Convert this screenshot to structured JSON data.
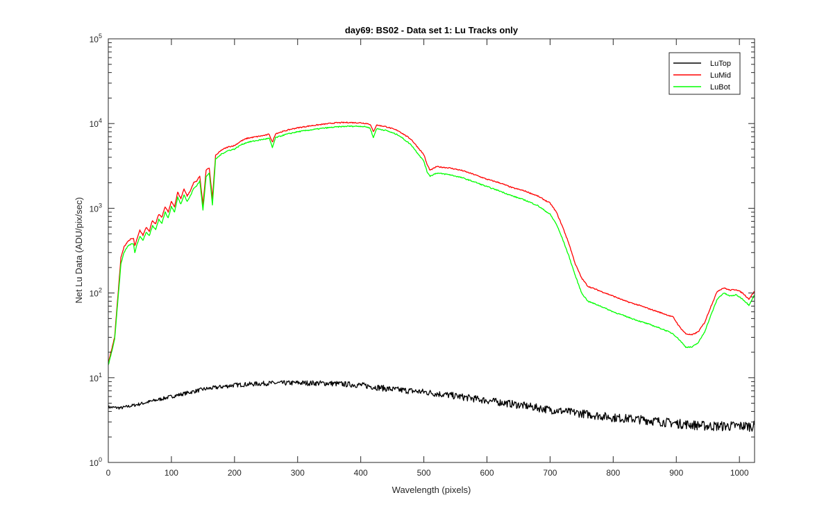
{
  "chart_data": {
    "type": "line",
    "title": "day69: BS02 - Data set 1: Lu Tracks only",
    "xlabel": "Wavelength (pixels)",
    "ylabel": "Net Lu Data (ADU/pix/sec)",
    "xlim": [
      0,
      1024
    ],
    "ylim": [
      1,
      100000
    ],
    "yscale": "log",
    "x_ticks": [
      0,
      100,
      200,
      300,
      400,
      500,
      600,
      700,
      800,
      900,
      1000
    ],
    "y_ticks": [
      {
        "value": 1,
        "base": "10",
        "exp": "0"
      },
      {
        "value": 10,
        "base": "10",
        "exp": "1"
      },
      {
        "value": 100,
        "base": "10",
        "exp": "2"
      },
      {
        "value": 1000,
        "base": "10",
        "exp": "3"
      },
      {
        "value": 10000,
        "base": "10",
        "exp": "4"
      },
      {
        "value": 100000,
        "base": "10",
        "exp": "5"
      }
    ],
    "grid": false,
    "legend_position": "top-right",
    "series": [
      {
        "name": "LuTop",
        "color": "#000000",
        "points": [
          [
            0,
            4.5
          ],
          [
            20,
            4.4
          ],
          [
            50,
            4.9
          ],
          [
            100,
            6.0
          ],
          [
            150,
            7.3
          ],
          [
            200,
            8.2
          ],
          [
            250,
            8.6
          ],
          [
            300,
            8.7
          ],
          [
            350,
            8.6
          ],
          [
            400,
            8.2
          ],
          [
            450,
            7.3
          ],
          [
            500,
            6.8
          ],
          [
            550,
            6.1
          ],
          [
            600,
            5.4
          ],
          [
            650,
            4.8
          ],
          [
            700,
            4.2
          ],
          [
            750,
            3.8
          ],
          [
            800,
            3.4
          ],
          [
            850,
            3.2
          ],
          [
            900,
            2.9
          ],
          [
            950,
            2.7
          ],
          [
            1000,
            2.7
          ],
          [
            1024,
            2.7
          ]
        ]
      },
      {
        "name": "LuMid",
        "color": "#ff0000",
        "points": [
          [
            0,
            15
          ],
          [
            10,
            30
          ],
          [
            20,
            260
          ],
          [
            25,
            350
          ],
          [
            30,
            400
          ],
          [
            35,
            430
          ],
          [
            40,
            440
          ],
          [
            42,
            360
          ],
          [
            45,
            420
          ],
          [
            50,
            550
          ],
          [
            55,
            480
          ],
          [
            60,
            600
          ],
          [
            65,
            540
          ],
          [
            70,
            720
          ],
          [
            75,
            650
          ],
          [
            80,
            850
          ],
          [
            85,
            780
          ],
          [
            90,
            1050
          ],
          [
            95,
            900
          ],
          [
            100,
            1200
          ],
          [
            105,
            1050
          ],
          [
            110,
            1550
          ],
          [
            115,
            1300
          ],
          [
            120,
            1700
          ],
          [
            125,
            1400
          ],
          [
            130,
            1600
          ],
          [
            135,
            2000
          ],
          [
            140,
            2100
          ],
          [
            145,
            2400
          ],
          [
            150,
            1100
          ],
          [
            155,
            2800
          ],
          [
            160,
            3000
          ],
          [
            165,
            1300
          ],
          [
            170,
            4200
          ],
          [
            180,
            4900
          ],
          [
            190,
            5300
          ],
          [
            200,
            5500
          ],
          [
            210,
            6200
          ],
          [
            220,
            6700
          ],
          [
            230,
            6900
          ],
          [
            240,
            7100
          ],
          [
            250,
            7300
          ],
          [
            255,
            7500
          ],
          [
            260,
            6000
          ],
          [
            265,
            7600
          ],
          [
            270,
            7800
          ],
          [
            280,
            8200
          ],
          [
            290,
            8600
          ],
          [
            300,
            8900
          ],
          [
            320,
            9400
          ],
          [
            340,
            9800
          ],
          [
            360,
            10200
          ],
          [
            380,
            10300
          ],
          [
            400,
            10200
          ],
          [
            410,
            10000
          ],
          [
            415,
            9800
          ],
          [
            420,
            8000
          ],
          [
            425,
            9600
          ],
          [
            440,
            9200
          ],
          [
            460,
            8200
          ],
          [
            480,
            6500
          ],
          [
            500,
            4300
          ],
          [
            505,
            3300
          ],
          [
            510,
            2800
          ],
          [
            520,
            3100
          ],
          [
            540,
            3000
          ],
          [
            560,
            2800
          ],
          [
            580,
            2500
          ],
          [
            600,
            2200
          ],
          [
            620,
            2000
          ],
          [
            640,
            1750
          ],
          [
            660,
            1600
          ],
          [
            680,
            1400
          ],
          [
            700,
            1150
          ],
          [
            710,
            900
          ],
          [
            720,
            600
          ],
          [
            730,
            380
          ],
          [
            740,
            220
          ],
          [
            750,
            150
          ],
          [
            760,
            120
          ],
          [
            780,
            105
          ],
          [
            800,
            92
          ],
          [
            820,
            80
          ],
          [
            840,
            72
          ],
          [
            860,
            64
          ],
          [
            880,
            57
          ],
          [
            895,
            52
          ],
          [
            905,
            40
          ],
          [
            915,
            33
          ],
          [
            925,
            32
          ],
          [
            935,
            35
          ],
          [
            945,
            45
          ],
          [
            955,
            70
          ],
          [
            965,
            105
          ],
          [
            975,
            115
          ],
          [
            985,
            108
          ],
          [
            995,
            110
          ],
          [
            1005,
            100
          ],
          [
            1015,
            85
          ],
          [
            1024,
            105
          ]
        ]
      },
      {
        "name": "LuBot",
        "color": "#00ff00",
        "points": [
          [
            0,
            14
          ],
          [
            10,
            28
          ],
          [
            20,
            220
          ],
          [
            25,
            300
          ],
          [
            30,
            350
          ],
          [
            35,
            375
          ],
          [
            40,
            380
          ],
          [
            42,
            300
          ],
          [
            45,
            360
          ],
          [
            50,
            470
          ],
          [
            55,
            420
          ],
          [
            60,
            520
          ],
          [
            65,
            470
          ],
          [
            70,
            620
          ],
          [
            75,
            560
          ],
          [
            80,
            740
          ],
          [
            85,
            670
          ],
          [
            90,
            900
          ],
          [
            95,
            770
          ],
          [
            100,
            1050
          ],
          [
            105,
            900
          ],
          [
            110,
            1350
          ],
          [
            115,
            1120
          ],
          [
            120,
            1450
          ],
          [
            125,
            1200
          ],
          [
            130,
            1400
          ],
          [
            135,
            1700
          ],
          [
            140,
            1850
          ],
          [
            145,
            2100
          ],
          [
            150,
            950
          ],
          [
            155,
            2400
          ],
          [
            160,
            2600
          ],
          [
            165,
            1100
          ],
          [
            170,
            3800
          ],
          [
            180,
            4400
          ],
          [
            190,
            4800
          ],
          [
            200,
            5000
          ],
          [
            210,
            5600
          ],
          [
            220,
            6000
          ],
          [
            230,
            6200
          ],
          [
            240,
            6400
          ],
          [
            250,
            6600
          ],
          [
            255,
            6700
          ],
          [
            260,
            5200
          ],
          [
            265,
            6800
          ],
          [
            270,
            7000
          ],
          [
            280,
            7400
          ],
          [
            290,
            7700
          ],
          [
            300,
            8000
          ],
          [
            320,
            8400
          ],
          [
            340,
            8800
          ],
          [
            360,
            9100
          ],
          [
            380,
            9300
          ],
          [
            400,
            9300
          ],
          [
            410,
            9100
          ],
          [
            415,
            8800
          ],
          [
            420,
            6800
          ],
          [
            425,
            8700
          ],
          [
            440,
            8300
          ],
          [
            460,
            7300
          ],
          [
            480,
            5600
          ],
          [
            500,
            3600
          ],
          [
            505,
            2700
          ],
          [
            510,
            2400
          ],
          [
            520,
            2600
          ],
          [
            540,
            2500
          ],
          [
            560,
            2300
          ],
          [
            580,
            2050
          ],
          [
            600,
            1800
          ],
          [
            620,
            1600
          ],
          [
            640,
            1400
          ],
          [
            660,
            1250
          ],
          [
            680,
            1080
          ],
          [
            700,
            850
          ],
          [
            710,
            650
          ],
          [
            720,
            430
          ],
          [
            730,
            270
          ],
          [
            740,
            160
          ],
          [
            750,
            100
          ],
          [
            760,
            80
          ],
          [
            780,
            70
          ],
          [
            800,
            60
          ],
          [
            820,
            53
          ],
          [
            840,
            47
          ],
          [
            860,
            42
          ],
          [
            880,
            37
          ],
          [
            895,
            33
          ],
          [
            905,
            28
          ],
          [
            915,
            23
          ],
          [
            925,
            23
          ],
          [
            935,
            26
          ],
          [
            945,
            35
          ],
          [
            955,
            55
          ],
          [
            965,
            85
          ],
          [
            975,
            100
          ],
          [
            985,
            92
          ],
          [
            995,
            95
          ],
          [
            1005,
            85
          ],
          [
            1015,
            72
          ],
          [
            1024,
            95
          ]
        ]
      }
    ]
  }
}
